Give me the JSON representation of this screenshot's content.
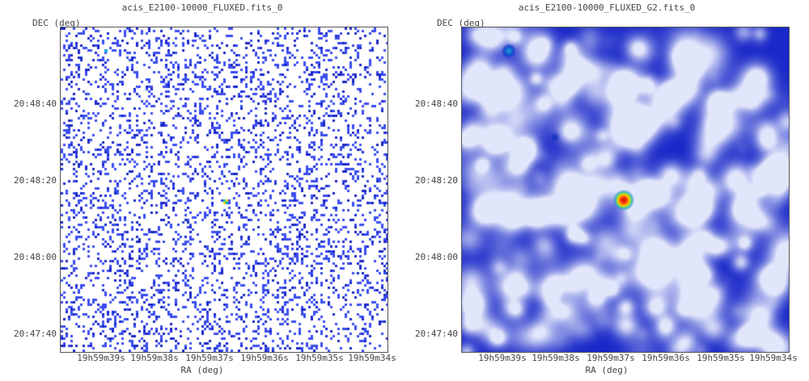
{
  "panels": [
    {
      "title": "acis_E2100-10000_FLUXED.fits_0",
      "y_axis_label": "DEC (deg)",
      "x_axis_label": "RA (deg)",
      "y_ticks": [
        "20:48:40",
        "20:48:20",
        "20:48:00",
        "20:47:40"
      ],
      "x_ticks": [
        "19h59m39s",
        "19h59m38s",
        "19h59m37s",
        "19h59m36s",
        "19h59m35s",
        "19h59m34s"
      ],
      "rendering": "sparse-pixels"
    },
    {
      "title": "acis_E2100-10000_FLUXED_G2.fits_0",
      "y_axis_label": "DEC (deg)",
      "x_axis_label": "RA (deg)",
      "y_ticks": [
        "20:48:40",
        "20:48:20",
        "20:48:00",
        "20:47:40"
      ],
      "x_ticks": [
        "19h59m39s",
        "19h59m38s",
        "19h59m37s",
        "19h59m36s",
        "19h59m35s",
        "19h59m34s"
      ],
      "rendering": "smoothed"
    }
  ],
  "colors": {
    "pixel": "#2633e0",
    "smooth_dark": "#1f2fd0",
    "smooth_light": "#e8ecff",
    "source": "#ff2200"
  }
}
